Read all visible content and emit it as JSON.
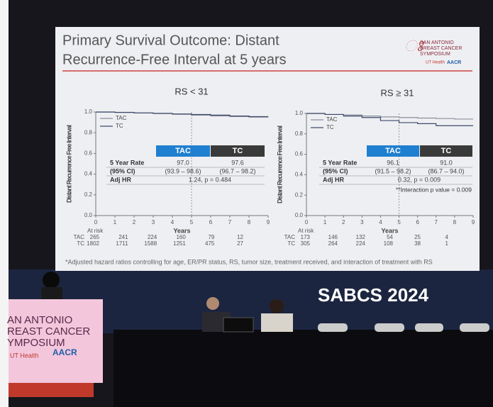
{
  "slide": {
    "title_lines": [
      "Primary Survival Outcome: Distant",
      "Recurrence-Free Interval at 5 years"
    ],
    "logo": [
      "SAN ANTONIO",
      "BREAST CANCER",
      "SYMPOSIUM",
      "UT Health",
      "AACR"
    ],
    "footnote": "*Adjusted hazard ratios controlling for age, ER/PR status, RS, tumor size, treatment received, and interaction of treatment with RS"
  },
  "overlay": "SABCS 2024",
  "podium": [
    "AN ANTONIO",
    "REAST CANCER",
    "YMPOSIUM",
    "UT Health",
    "AACR"
  ],
  "chart_data": [
    {
      "type": "line",
      "title": "RS < 31",
      "x_label": "Years",
      "y_label": "Distant Recurrence Free Interval",
      "x": [
        0,
        1,
        2,
        3,
        4,
        5,
        6,
        7,
        8,
        9
      ],
      "xlim": [
        0,
        9
      ],
      "xticks": [
        0,
        1,
        2,
        3,
        4,
        5,
        6,
        7,
        8,
        9
      ],
      "ylim": [
        0,
        1
      ],
      "yticks": [
        {
          "value": 0,
          "label": "0.0"
        },
        0.2,
        0.4,
        0.6,
        0.8,
        {
          "value": 1,
          "label": "1.0"
        }
      ],
      "series": [
        {
          "name": "TAC",
          "color": "#8a8f99",
          "values": [
            1,
            0.995,
            0.99,
            0.985,
            0.978,
            0.97,
            0.962,
            0.956,
            0.95,
            0.95
          ]
        },
        {
          "name": "TC",
          "color": "#3b4a6b",
          "values": [
            1,
            0.997,
            0.992,
            0.987,
            0.981,
            0.976,
            0.97,
            0.962,
            0.956,
            0.955
          ]
        }
      ],
      "table": {
        "headers": [
          "TAC",
          "TC"
        ],
        "rows": [
          {
            "label": "5 Year Rate",
            "cells": [
              "97.0",
              "97.6"
            ]
          },
          {
            "label": "(95% CI)",
            "cells": [
              "(93.9 – 98.6)",
              "(96.7 – 98.2)"
            ]
          },
          {
            "label": "Adj HR",
            "cells": [
              "1.24, p = 0.484"
            ]
          }
        ]
      },
      "at_risk": {
        "label": "At risk",
        "rows": [
          {
            "name": "TAC",
            "values": [
              265,
              241,
              224,
              160,
              79,
              12
            ]
          },
          {
            "name": "TC",
            "values": [
              1802,
              1711,
              1588,
              1251,
              475,
              27
            ]
          }
        ]
      }
    },
    {
      "type": "line",
      "title": "RS ≥ 31",
      "x_label": "Years",
      "y_label": "Distant Recurrence Free Interval",
      "x": [
        0,
        1,
        2,
        3,
        4,
        5,
        6,
        7,
        8,
        9
      ],
      "xlim": [
        0,
        9
      ],
      "xticks": [
        0,
        1,
        2,
        3,
        4,
        5,
        6,
        7,
        8,
        9
      ],
      "ylim": [
        0,
        1
      ],
      "yticks": [
        {
          "value": 0,
          "label": "0.0"
        },
        0.2,
        0.4,
        0.6,
        0.8,
        {
          "value": 1,
          "label": "1.0"
        }
      ],
      "series": [
        {
          "name": "TAC",
          "color": "#8a8f99",
          "values": [
            1,
            0.99,
            0.985,
            0.975,
            0.966,
            0.96,
            0.955,
            0.95,
            0.945,
            0.945
          ]
        },
        {
          "name": "TC",
          "color": "#3b4a6b",
          "values": [
            1,
            0.99,
            0.975,
            0.96,
            0.93,
            0.91,
            0.9,
            0.88,
            0.88,
            0.88
          ]
        }
      ],
      "table": {
        "headers": [
          "TAC",
          "TC"
        ],
        "rows": [
          {
            "label": "5 Year Rate",
            "cells": [
              "96.1",
              "91.0"
            ]
          },
          {
            "label": "(95% CI)",
            "cells": [
              "(91.5 – 98.2)",
              "(86.7 – 94.0)"
            ]
          },
          {
            "label": "Adj HR",
            "cells": [
              "0.32, p = 0.009"
            ]
          }
        ]
      },
      "annotation": "**Interaction p value = 0.009",
      "at_risk": {
        "label": "At risk",
        "rows": [
          {
            "name": "TAC",
            "values": [
              173,
              146,
              132,
              54,
              25,
              4
            ]
          },
          {
            "name": "TC",
            "values": [
              305,
              264,
              224,
              108,
              38,
              1
            ]
          }
        ]
      }
    }
  ]
}
